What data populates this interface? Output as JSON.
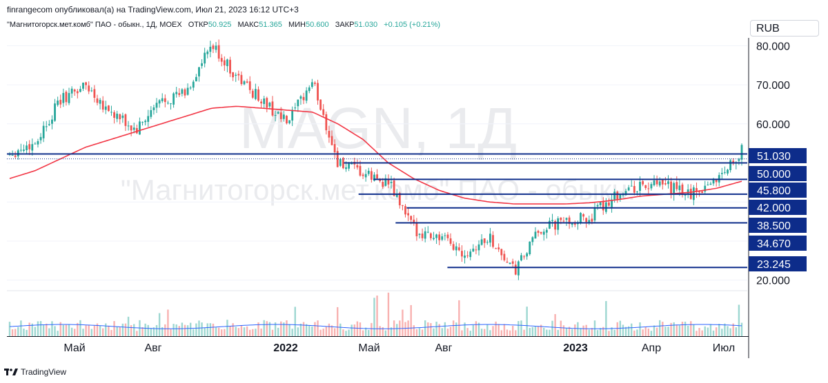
{
  "header": {
    "published": "finrangecom опубликовал(а) на TradingView.com, Июл 21, 2023 16:12 UTC+3",
    "symbol": "\"Магнитогорск.мет.комб\" ПАО - обыкн., 1Д, MOEX",
    "open_label": "ОТКР",
    "open_value": "50.925",
    "high_label": "МАКС",
    "high_value": "51.365",
    "low_label": "МИН",
    "low_value": "50.600",
    "close_label": "ЗАКР",
    "close_value": "51.030",
    "change": "+0.105 (+0.21%)",
    "currency": "RUB"
  },
  "watermark": {
    "ticker": "MAGN, 1Д",
    "name": "\"Магнитогорск.мет.комб\" ПАО - обыкн."
  },
  "footer": {
    "brand": "TradingView"
  },
  "colors": {
    "up": "#26a69a",
    "down": "#ef5350",
    "ma": "#f23645",
    "level": "#0d2c8a",
    "price_label": "#0d2c8a",
    "volume_ma": "#2962ff"
  },
  "chart_data": {
    "type": "line",
    "title": "MAGN, 1Д",
    "series": [
      {
        "name": "",
        "x": [
          "2021-02",
          "2021-03",
          "2021-04",
          "2021-05",
          "2021-06",
          "2021-07",
          "2021-08",
          "2021-09",
          "2021-10",
          "2021-11",
          "2021-12",
          "2022-01",
          "2022-02",
          "2022-03",
          "2022-04",
          "2022-05",
          "2022-06",
          "2022-07",
          "2022-08",
          "2022-09",
          "2022-10",
          "2022-11",
          "2022-12",
          "2023-01",
          "2023-02",
          "2023-03",
          "2023-04",
          "2023-05",
          "2023-06",
          "2023-07"
        ],
        "values": [
          52.5,
          55,
          66,
          70,
          63,
          58,
          66,
          68,
          80,
          72,
          66,
          60,
          71,
          50,
          47,
          45,
          33,
          31,
          27,
          31,
          22,
          33,
          35,
          36,
          42,
          44,
          44,
          42,
          46,
          53
        ]
      },
      {
        "name": "",
        "values": [
          46,
          48,
          51,
          54,
          56,
          58,
          60,
          62,
          64,
          64.5,
          64,
          63.5,
          63,
          60,
          56,
          50,
          46,
          43,
          41,
          40,
          39.5,
          39.5,
          39.5,
          39.8,
          40.5,
          41.5,
          42,
          42.5,
          43.5,
          45.3
        ]
      }
    ],
    "levels": [
      50.0,
      45.8,
      42.0,
      38.5,
      34.67,
      23.245
    ],
    "current_price": 51.03,
    "y_ticks": [
      "80.000",
      "70.000",
      "60.000",
      "20.000"
    ],
    "level_labels": [
      "51.030",
      "50.000",
      "45.800",
      "42.000",
      "38.500",
      "34.670",
      "23.245"
    ],
    "x_ticks": [
      {
        "label": "Май",
        "bold": false
      },
      {
        "label": "Авг",
        "bold": false
      },
      {
        "label": "2022",
        "bold": true
      },
      {
        "label": "Май",
        "bold": false
      },
      {
        "label": "Авг",
        "bold": false
      },
      {
        "label": "2023",
        "bold": true
      },
      {
        "label": "Апр",
        "bold": false
      },
      {
        "label": "Июл",
        "bold": false
      }
    ]
  }
}
